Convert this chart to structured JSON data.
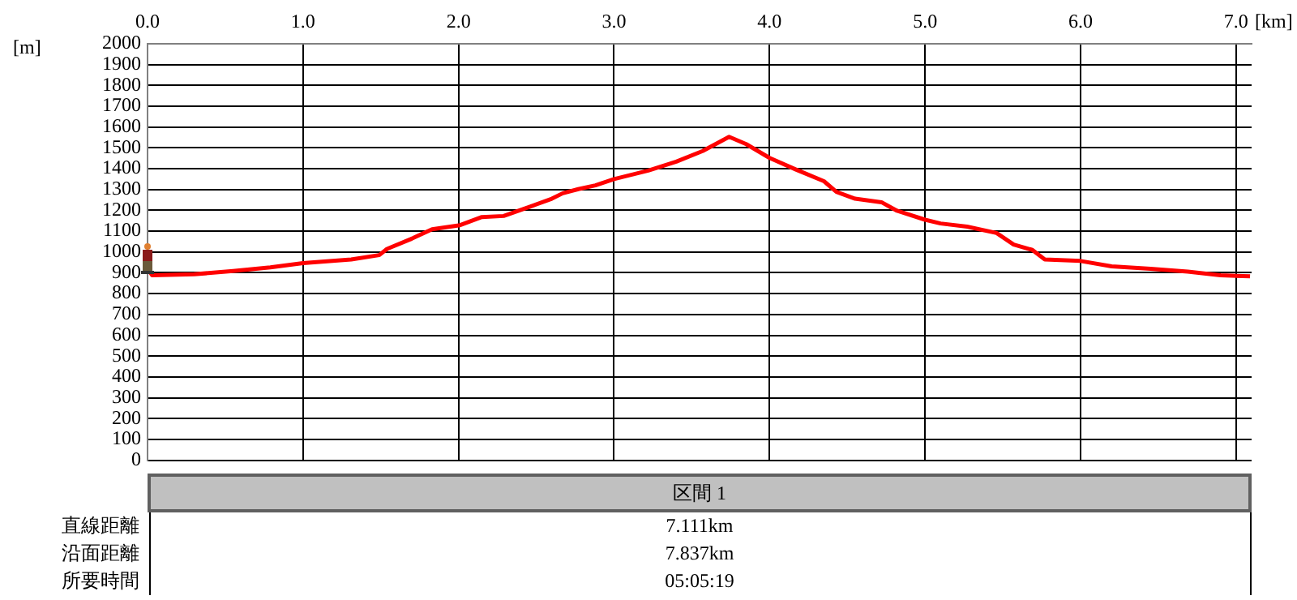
{
  "chart_data": {
    "type": "line",
    "xlabel": "[km]",
    "ylabel": "[m]",
    "x": [
      0,
      0.03,
      0.3,
      0.55,
      0.79,
      1.0,
      1.31,
      1.49,
      1.54,
      1.69,
      1.83,
      2.01,
      2.15,
      2.29,
      2.46,
      2.6,
      2.67,
      2.77,
      2.88,
      3.0,
      3.22,
      3.4,
      3.57,
      3.74,
      3.85,
      4.0,
      4.17,
      4.35,
      4.43,
      4.55,
      4.72,
      4.82,
      5.0,
      5.1,
      5.27,
      5.46,
      5.57,
      5.69,
      5.77,
      6.0,
      6.2,
      6.45,
      6.69,
      6.9,
      7.09
    ],
    "series": [
      {
        "color": "#ff0000",
        "values": [
          920,
          888,
          893,
          909,
          926,
          947,
          964,
          985,
          1015,
          1061,
          1109,
          1129,
          1168,
          1173,
          1218,
          1256,
          1282,
          1302,
          1320,
          1350,
          1391,
          1434,
          1485,
          1553,
          1518,
          1452,
          1396,
          1340,
          1289,
          1256,
          1239,
          1198,
          1155,
          1137,
          1122,
          1091,
          1036,
          1010,
          964,
          957,
          931,
          919,
          906,
          888,
          883
        ]
      }
    ],
    "xlim": [
      0,
      7.1
    ],
    "xticks": [
      {
        "value": 0,
        "label": "0.0"
      },
      {
        "value": 1,
        "label": "1.0"
      },
      {
        "value": 2,
        "label": "2.0"
      },
      {
        "value": 3,
        "label": "3.0"
      },
      {
        "value": 4,
        "label": "4.0"
      },
      {
        "value": 5,
        "label": "5.0"
      },
      {
        "value": 6,
        "label": "6.0"
      },
      {
        "value": 7,
        "label": "7.0"
      }
    ],
    "ylim": [
      0,
      2000
    ],
    "yticks": [
      0,
      100,
      200,
      300,
      400,
      500,
      600,
      700,
      800,
      900,
      1000,
      1100,
      1200,
      1300,
      1400,
      1500,
      1600,
      1700,
      1800,
      1900,
      2000
    ],
    "grid": true,
    "legend": false,
    "marker": "none",
    "line_style": "solid",
    "annotations": [
      "区間 1",
      "直線距離",
      "7.111km",
      "沿面距離",
      "7.837km",
      "所要時間",
      "05:05:19"
    ]
  }
}
